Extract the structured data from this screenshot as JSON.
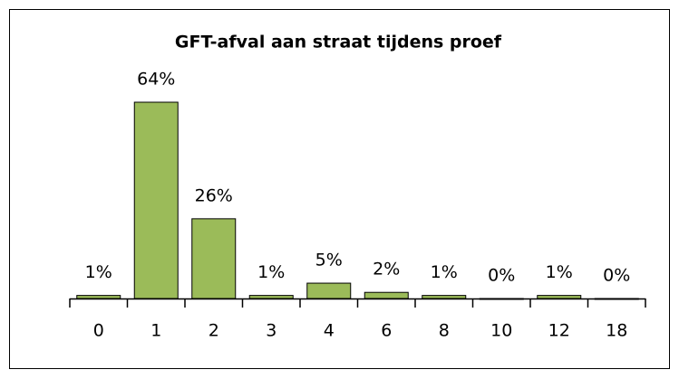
{
  "chart_data": {
    "type": "bar",
    "title": "GFT-afval aan straat tijdens proef",
    "categories": [
      "0",
      "1",
      "2",
      "3",
      "4",
      "6",
      "8",
      "10",
      "12",
      "18"
    ],
    "values": [
      1,
      64,
      26,
      1,
      5,
      2,
      1,
      0,
      1,
      0
    ],
    "value_labels": [
      "1%",
      "64%",
      "26%",
      "1%",
      "5%",
      "2%",
      "1%",
      "0%",
      "1%",
      "0%"
    ],
    "color": "#9bbb59"
  }
}
